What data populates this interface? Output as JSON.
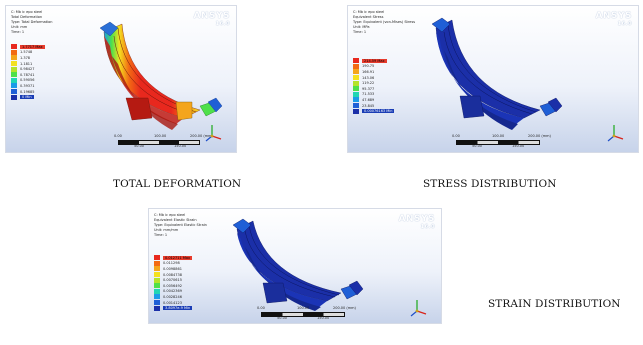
{
  "panels": [
    {
      "id": "deformation",
      "header": [
        "C: Mb ic epo steel",
        "Total Deformation",
        "Type: Total Deformation",
        "Unit: mm",
        "Time: 1"
      ],
      "brand": "ANSYS",
      "version": "16.0",
      "legend": {
        "max_label": "1.7717 Max",
        "values": [
          "1.5748",
          "1.378",
          "1.1811",
          "0.98427",
          "0.78741",
          "0.59056",
          "0.39371",
          "0.19685"
        ],
        "min_label": "0 Min",
        "colors": [
          "#e8281e",
          "#f26a14",
          "#f4a51c",
          "#f4e11f",
          "#b4e32a",
          "#4ee04a",
          "#21d6b4",
          "#1b9be8",
          "#1f5fd6",
          "#1b2fa8"
        ]
      },
      "scale": {
        "top_ticks": [
          "0.00",
          "100.00",
          "200.00 (mm)"
        ],
        "bottom_ticks": [
          "50.00",
          "150.00"
        ]
      },
      "caption": "TOTAL DEFORMATION"
    },
    {
      "id": "stress",
      "header": [
        "C: Mb ic epo steel",
        "Equivalent Stress",
        "Type: Equivalent (von-Mises) Stress",
        "Unit: MPa",
        "Time: 1"
      ],
      "brand": "ANSYS",
      "version": "16.0",
      "legend": {
        "max_label": "214.59 Max",
        "values": [
          "190.75",
          "166.91",
          "143.06",
          "119.22",
          "95.377",
          "71.533",
          "47.689",
          "23.845"
        ],
        "min_label": "0.00076163 Min",
        "colors": [
          "#e8281e",
          "#f26a14",
          "#f4a51c",
          "#f4e11f",
          "#b4e32a",
          "#4ee04a",
          "#21d6b4",
          "#1b9be8",
          "#1f5fd6",
          "#1b2fa8"
        ]
      },
      "scale": {
        "top_ticks": [
          "0.00",
          "100.00",
          "200.00 (mm)"
        ],
        "bottom_ticks": [
          "50.00",
          "150.00"
        ]
      },
      "caption": "STRESS DISTRIBUTION"
    },
    {
      "id": "strain",
      "header": [
        "C: Mb ic epo steel",
        "Equivalent Elastic Strain",
        "Type: Equivalent Elastic Strain",
        "Unit: mm/mm",
        "Time: 1"
      ],
      "brand": "ANSYS",
      "version": "16.0",
      "legend": {
        "max_label": "0.012711 Max",
        "values": [
          "0.011298",
          "0.0098861",
          "0.0084738",
          "0.0070615",
          "0.0056492",
          "0.0042369",
          "0.0028246",
          "0.0014123"
        ],
        "min_label": "3.8097e-9 Min",
        "colors": [
          "#e8281e",
          "#f26a14",
          "#f4a51c",
          "#f4e11f",
          "#b4e32a",
          "#4ee04a",
          "#21d6b4",
          "#1b9be8",
          "#1f5fd6",
          "#1b2fa8"
        ]
      },
      "scale": {
        "top_ticks": [
          "0.00",
          "100.00",
          "200.00 (mm)"
        ],
        "bottom_ticks": [
          "50.00",
          "150.00"
        ]
      },
      "caption": "STRAIN DISTRIBUTION"
    }
  ]
}
